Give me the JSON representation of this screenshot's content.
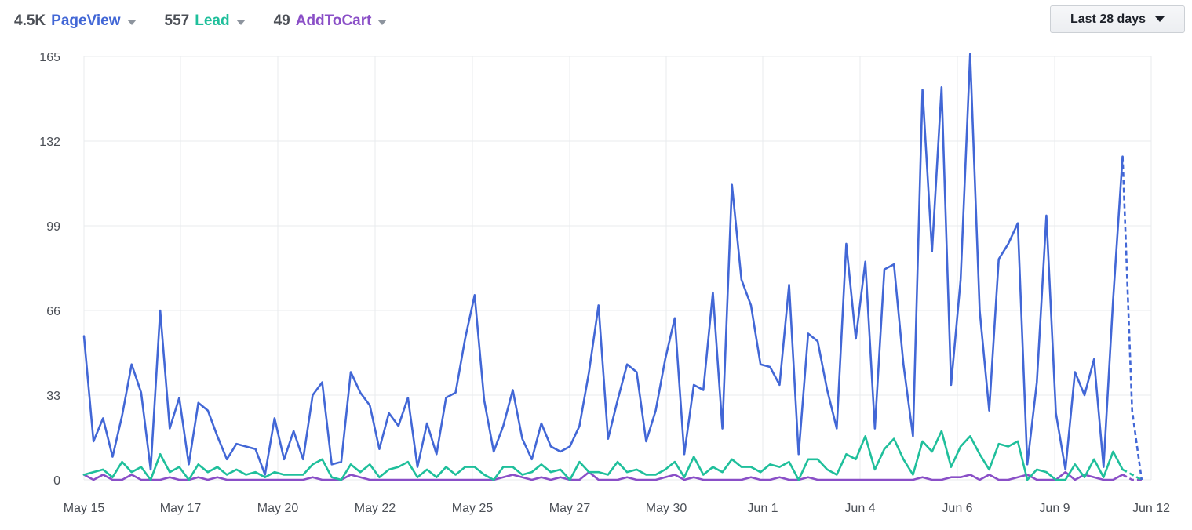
{
  "header": {
    "metrics": [
      {
        "value": "4.5K",
        "label": "PageView",
        "color": "#4267d6"
      },
      {
        "value": "557",
        "label": "Lead",
        "color": "#1fbf9b"
      },
      {
        "value": "49",
        "label": "AddToCart",
        "color": "#8a4fc7"
      }
    ],
    "date_range": "Last 28 days"
  },
  "chart_data": {
    "type": "line",
    "x_tick_labels": [
      "May 15",
      "May 17",
      "May 20",
      "May 22",
      "May 25",
      "May 27",
      "May 30",
      "Jun 1",
      "Jun 4",
      "Jun 6",
      "Jun 9",
      "Jun 12"
    ],
    "y_ticks": [
      0,
      33,
      66,
      99,
      132,
      165
    ],
    "ylim": [
      0,
      165
    ],
    "x_range": [
      "May 15",
      "Jun 12"
    ],
    "grid": true,
    "last_segment_dashed": true,
    "series": [
      {
        "name": "PageView",
        "color": "#4267d6",
        "values": [
          56,
          15,
          24,
          9,
          25,
          45,
          34,
          4,
          66,
          20,
          32,
          6,
          30,
          27,
          17,
          8,
          14,
          13,
          12,
          2,
          24,
          8,
          19,
          8,
          33,
          38,
          6,
          7,
          42,
          34,
          29,
          12,
          26,
          21,
          32,
          5,
          22,
          10,
          32,
          34,
          55,
          72,
          31,
          11,
          21,
          35,
          16,
          8,
          22,
          13,
          11,
          13,
          21,
          42,
          68,
          16,
          31,
          45,
          42,
          15,
          27,
          47,
          63,
          10,
          37,
          35,
          73,
          20,
          115,
          78,
          68,
          45,
          44,
          37,
          76,
          10,
          57,
          54,
          35,
          20,
          92,
          55,
          85,
          20,
          82,
          84,
          45,
          17,
          152,
          89,
          153,
          37,
          78,
          166,
          66,
          27,
          86,
          92,
          100,
          6,
          38,
          103,
          26,
          4,
          42,
          33,
          47,
          5,
          70,
          126,
          27,
          0
        ],
        "dates": [
          "2025-05-15T00",
          "2025-05-15T06",
          "2025-05-15T12",
          "2025-05-15T18",
          "2025-05-16T00",
          "2025-05-16T06",
          "2025-05-16T12",
          "2025-05-16T18",
          "2025-05-17T00",
          "2025-05-17T06",
          "2025-05-17T12",
          "2025-05-17T18",
          "2025-05-18T00",
          "2025-05-18T06",
          "2025-05-18T12",
          "2025-05-18T18",
          "2025-05-19T00",
          "2025-05-19T06",
          "2025-05-19T12",
          "2025-05-19T18",
          "2025-05-20T00",
          "2025-05-20T06",
          "2025-05-20T12",
          "2025-05-20T18",
          "2025-05-21T00",
          "2025-05-21T06",
          "2025-05-21T12",
          "2025-05-21T18",
          "2025-05-22T00",
          "2025-05-22T06",
          "2025-05-22T12",
          "2025-05-22T18",
          "2025-05-23T00",
          "2025-05-23T06",
          "2025-05-23T12",
          "2025-05-23T18",
          "2025-05-24T00",
          "2025-05-24T06",
          "2025-05-24T12",
          "2025-05-24T18",
          "2025-05-25T00",
          "2025-05-25T06",
          "2025-05-25T12",
          "2025-05-25T18",
          "2025-05-26T00",
          "2025-05-26T06",
          "2025-05-26T12",
          "2025-05-26T18",
          "2025-05-27T00",
          "2025-05-27T06",
          "2025-05-27T12",
          "2025-05-27T18",
          "2025-05-28T00",
          "2025-05-28T06",
          "2025-05-28T12",
          "2025-05-28T18",
          "2025-05-29T00",
          "2025-05-29T06",
          "2025-05-29T12",
          "2025-05-29T18",
          "2025-05-30T00",
          "2025-05-30T06",
          "2025-05-30T12",
          "2025-05-30T18",
          "2025-05-31T00",
          "2025-05-31T06",
          "2025-05-31T12",
          "2025-05-31T18",
          "2025-06-01T00",
          "2025-06-01T06",
          "2025-06-01T12",
          "2025-06-01T18",
          "2025-06-02T00",
          "2025-06-02T06",
          "2025-06-02T12",
          "2025-06-02T18",
          "2025-06-03T00",
          "2025-06-03T06",
          "2025-06-03T12",
          "2025-06-03T18",
          "2025-06-04T00",
          "2025-06-04T06",
          "2025-06-04T12",
          "2025-06-04T18",
          "2025-06-05T00",
          "2025-06-05T06",
          "2025-06-05T12",
          "2025-06-05T18",
          "2025-06-06T00",
          "2025-06-06T06",
          "2025-06-06T12",
          "2025-06-06T18",
          "2025-06-07T00",
          "2025-06-07T06",
          "2025-06-07T12",
          "2025-06-07T18",
          "2025-06-08T00",
          "2025-06-08T06",
          "2025-06-08T12",
          "2025-06-08T18",
          "2025-06-09T00",
          "2025-06-09T06",
          "2025-06-09T12",
          "2025-06-09T18",
          "2025-06-10T00",
          "2025-06-10T06",
          "2025-06-10T12",
          "2025-06-10T18",
          "2025-06-11T00",
          "2025-06-11T06",
          "2025-06-11T12",
          "2025-06-11T18"
        ]
      },
      {
        "name": "Lead",
        "color": "#1fbf9b",
        "values": [
          2,
          3,
          4,
          1,
          7,
          3,
          5,
          0,
          10,
          3,
          5,
          0,
          6,
          3,
          5,
          2,
          4,
          2,
          3,
          1,
          3,
          2,
          2,
          2,
          6,
          8,
          1,
          0,
          6,
          3,
          6,
          1,
          4,
          5,
          7,
          1,
          4,
          1,
          5,
          2,
          5,
          5,
          2,
          0,
          5,
          5,
          2,
          3,
          6,
          3,
          4,
          0,
          7,
          3,
          3,
          2,
          7,
          3,
          4,
          2,
          2,
          4,
          7,
          1,
          9,
          2,
          5,
          3,
          8,
          5,
          5,
          3,
          6,
          5,
          7,
          0,
          8,
          8,
          4,
          2,
          10,
          8,
          17,
          4,
          12,
          16,
          8,
          2,
          15,
          11,
          19,
          5,
          13,
          17,
          10,
          4,
          14,
          13,
          15,
          0,
          4,
          3,
          0,
          0,
          6,
          1,
          8,
          1,
          11,
          4,
          2,
          0
        ]
      },
      {
        "name": "AddToCart",
        "color": "#8a4fc7",
        "values": [
          2,
          0,
          2,
          0,
          0,
          2,
          0,
          0,
          0,
          1,
          0,
          0,
          1,
          0,
          1,
          0,
          0,
          0,
          0,
          0,
          0,
          0,
          0,
          0,
          1,
          0,
          0,
          0,
          2,
          1,
          0,
          0,
          0,
          0,
          0,
          0,
          0,
          0,
          0,
          0,
          0,
          0,
          0,
          0,
          1,
          2,
          1,
          0,
          1,
          0,
          1,
          0,
          0,
          3,
          0,
          0,
          0,
          1,
          0,
          0,
          0,
          1,
          2,
          0,
          1,
          0,
          0,
          0,
          0,
          0,
          1,
          0,
          0,
          1,
          0,
          0,
          1,
          0,
          0,
          0,
          0,
          0,
          0,
          0,
          0,
          0,
          0,
          0,
          1,
          0,
          0,
          1,
          1,
          2,
          0,
          2,
          0,
          0,
          1,
          2,
          0,
          0,
          0,
          3,
          0,
          2,
          1,
          0,
          0,
          2,
          0,
          0
        ]
      }
    ]
  }
}
